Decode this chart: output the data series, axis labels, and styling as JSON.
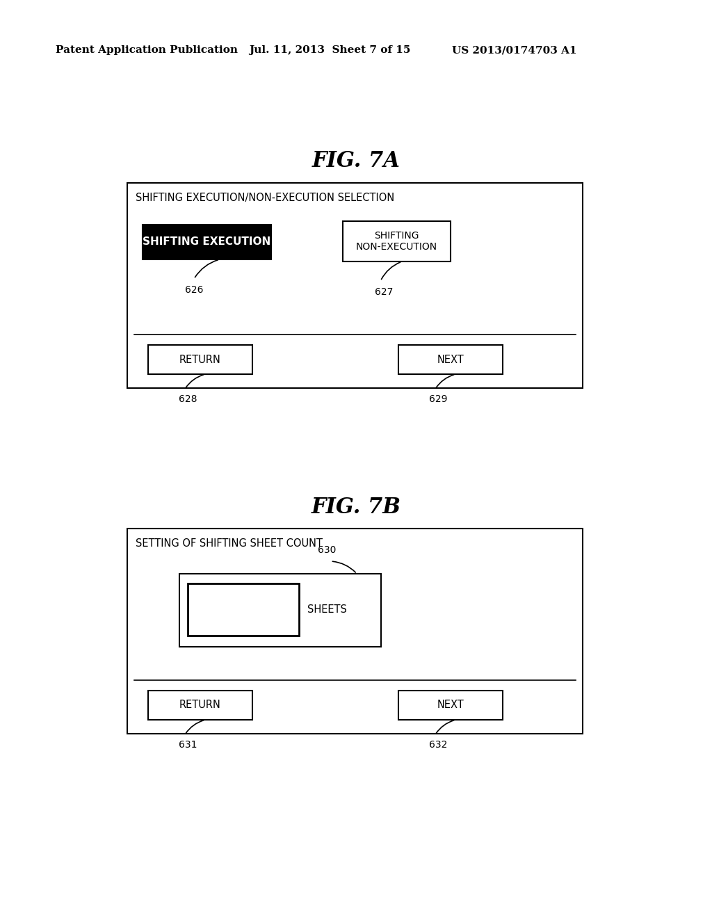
{
  "bg_color": "#ffffff",
  "header_left": "Patent Application Publication",
  "header_mid": "Jul. 11, 2013  Sheet 7 of 15",
  "header_right": "US 2013/0174703 A1",
  "fig7a_title": "FIG. 7A",
  "fig7b_title": "FIG. 7B",
  "fig7a_panel_title": "SHIFTING EXECUTION/NON-EXECUTION SELECTION",
  "fig7b_panel_title": "SETTING OF SHIFTING SHEET COUNT",
  "btn_exec_text": "SHIFTING EXECUTION",
  "btn_nonexec_text": "SHIFTING\nNON-EXECUTION",
  "btn_return_text": "RETURN",
  "btn_next_text": "NEXT",
  "label_626": "626",
  "label_627": "627",
  "label_628": "628",
  "label_629": "629",
  "label_630": "630",
  "label_631": "631",
  "label_632": "632",
  "sheets_label": "SHEETS"
}
